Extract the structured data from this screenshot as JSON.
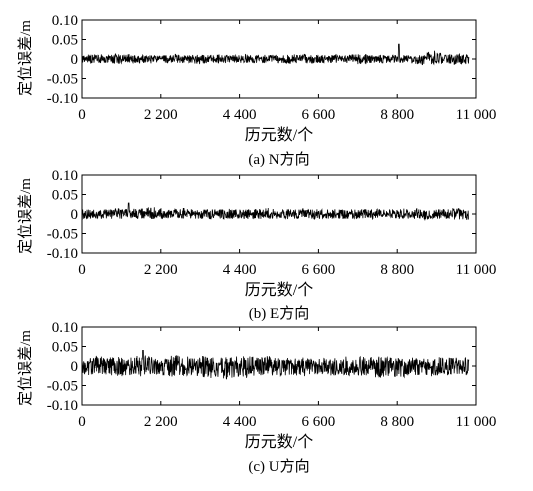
{
  "figure": {
    "x_ticks": [
      "0",
      "2 200",
      "4 400",
      "6 600",
      "8 800",
      "11 000"
    ],
    "y_ticks": [
      "0.10",
      "0.05",
      "0",
      "-0.05",
      "-0.10"
    ]
  },
  "chart_data": [
    {
      "type": "line",
      "panel_id": "N",
      "caption": "(a) N方向",
      "xlabel": "历元数/个",
      "ylabel": "定位误差/m",
      "xlim": [
        0,
        11000
      ],
      "ylim": [
        -0.1,
        0.1
      ],
      "x_ticks": [
        0,
        2200,
        4400,
        6600,
        8800,
        11000
      ],
      "y_ticks": [
        0.1,
        0.05,
        0,
        -0.05,
        -0.1
      ],
      "series": [
        {
          "x_start": 0,
          "x_end": 10800,
          "center": 0.0,
          "envelope_upper": [
            0.01,
            0.012,
            0.014,
            0.012,
            0.01,
            0.01,
            0.012,
            0.01,
            0.012,
            0.01,
            0.01,
            0.01,
            0.012,
            0.01,
            0.008,
            0.01,
            0.01,
            0.012,
            0.01,
            0.01,
            0.01,
            0.012,
            0.01,
            0.01,
            0.01,
            0.012,
            0.01,
            0.008,
            0.01,
            0.01,
            0.012,
            0.01,
            0.01,
            0.01,
            0.01,
            0.01,
            0.01,
            0.01,
            0.012,
            0.012,
            0.01,
            0.012,
            0.01,
            0.01,
            0.01,
            0.01,
            0.01,
            0.01,
            0.01,
            0.012,
            0.012,
            0.014,
            0.012,
            0.01,
            0.01,
            0.01,
            0.01,
            0.01,
            0.01,
            0.01,
            0.01,
            0.012,
            0.012,
            0.014,
            0.018,
            0.022,
            0.016,
            0.012,
            0.012,
            0.014,
            0.014,
            0.012
          ],
          "envelope_lower": [
            -0.01,
            -0.012,
            -0.012,
            -0.01,
            -0.01,
            -0.01,
            -0.012,
            -0.01,
            -0.01,
            -0.01,
            -0.01,
            -0.01,
            -0.012,
            -0.01,
            -0.008,
            -0.01,
            -0.01,
            -0.01,
            -0.01,
            -0.01,
            -0.01,
            -0.012,
            -0.01,
            -0.01,
            -0.01,
            -0.01,
            -0.01,
            -0.008,
            -0.01,
            -0.01,
            -0.01,
            -0.01,
            -0.01,
            -0.01,
            -0.01,
            -0.01,
            -0.01,
            -0.01,
            -0.012,
            -0.01,
            -0.01,
            -0.01,
            -0.01,
            -0.01,
            -0.01,
            -0.01,
            -0.01,
            -0.01,
            -0.01,
            -0.012,
            -0.012,
            -0.012,
            -0.012,
            -0.01,
            -0.01,
            -0.01,
            -0.01,
            -0.01,
            -0.01,
            -0.01,
            -0.01,
            -0.012,
            -0.012,
            -0.014,
            -0.014,
            -0.014,
            -0.012,
            -0.012,
            -0.012,
            -0.014,
            -0.014,
            -0.012
          ],
          "peak": {
            "x": 8850,
            "y": 0.038
          }
        }
      ]
    },
    {
      "type": "line",
      "panel_id": "E",
      "caption": "(b) E方向",
      "xlabel": "历元数/个",
      "ylabel": "定位误差/m",
      "xlim": [
        0,
        11000
      ],
      "ylim": [
        -0.1,
        0.1
      ],
      "x_ticks": [
        0,
        2200,
        4400,
        6600,
        8800,
        11000
      ],
      "y_ticks": [
        0.1,
        0.05,
        0,
        -0.05,
        -0.1
      ],
      "series": [
        {
          "x_start": 0,
          "x_end": 10800,
          "center": 0.0,
          "envelope_upper": [
            0.012,
            0.012,
            0.014,
            0.012,
            0.012,
            0.012,
            0.014,
            0.012,
            0.012,
            0.014,
            0.012,
            0.014,
            0.016,
            0.018,
            0.014,
            0.012,
            0.012,
            0.012,
            0.014,
            0.012,
            0.012,
            0.012,
            0.012,
            0.012,
            0.012,
            0.014,
            0.012,
            0.012,
            0.012,
            0.012,
            0.012,
            0.012,
            0.012,
            0.012,
            0.014,
            0.012,
            0.012,
            0.012,
            0.012,
            0.012,
            0.012,
            0.014,
            0.012,
            0.012,
            0.012,
            0.012,
            0.012,
            0.012,
            0.012,
            0.014,
            0.012,
            0.012,
            0.012,
            0.012,
            0.012,
            0.012,
            0.012,
            0.012,
            0.012,
            0.014,
            0.012,
            0.012,
            0.014,
            0.014,
            0.012,
            0.012,
            0.012,
            0.012,
            0.012,
            0.014,
            0.014,
            0.012
          ],
          "envelope_lower": [
            -0.012,
            -0.012,
            -0.012,
            -0.012,
            -0.012,
            -0.012,
            -0.012,
            -0.012,
            -0.012,
            -0.012,
            -0.012,
            -0.012,
            -0.012,
            -0.012,
            -0.012,
            -0.012,
            -0.012,
            -0.012,
            -0.012,
            -0.012,
            -0.012,
            -0.012,
            -0.012,
            -0.012,
            -0.012,
            -0.012,
            -0.012,
            -0.012,
            -0.012,
            -0.012,
            -0.012,
            -0.012,
            -0.012,
            -0.012,
            -0.012,
            -0.012,
            -0.012,
            -0.012,
            -0.012,
            -0.012,
            -0.012,
            -0.012,
            -0.012,
            -0.012,
            -0.012,
            -0.012,
            -0.012,
            -0.012,
            -0.012,
            -0.012,
            -0.012,
            -0.012,
            -0.012,
            -0.012,
            -0.012,
            -0.012,
            -0.012,
            -0.012,
            -0.012,
            -0.012,
            -0.012,
            -0.012,
            -0.014,
            -0.016,
            -0.012,
            -0.012,
            -0.012,
            -0.012,
            -0.012,
            -0.014,
            -0.016,
            -0.014
          ],
          "peak": {
            "x": 1300,
            "y": 0.028
          }
        }
      ]
    },
    {
      "type": "line",
      "panel_id": "U",
      "caption": "(c) U方向",
      "xlabel": "历元数/个",
      "ylabel": "定位误差/m",
      "xlim": [
        0,
        11000
      ],
      "ylim": [
        -0.1,
        0.1
      ],
      "x_ticks": [
        0,
        2200,
        4400,
        6600,
        8800,
        11000
      ],
      "y_ticks": [
        0.1,
        0.05,
        0,
        -0.05,
        -0.1
      ],
      "series": [
        {
          "x_start": 0,
          "x_end": 10800,
          "center": 0.0,
          "envelope_upper": [
            0.018,
            0.02,
            0.024,
            0.022,
            0.02,
            0.022,
            0.024,
            0.022,
            0.02,
            0.022,
            0.024,
            0.028,
            0.026,
            0.024,
            0.022,
            0.022,
            0.024,
            0.026,
            0.024,
            0.022,
            0.02,
            0.022,
            0.024,
            0.022,
            0.022,
            0.024,
            0.024,
            0.022,
            0.026,
            0.028,
            0.026,
            0.024,
            0.022,
            0.022,
            0.024,
            0.022,
            0.02,
            0.02,
            0.022,
            0.02,
            0.02,
            0.022,
            0.02,
            0.02,
            0.02,
            0.022,
            0.022,
            0.02,
            0.02,
            0.022,
            0.024,
            0.024,
            0.022,
            0.022,
            0.02,
            0.022,
            0.024,
            0.022,
            0.02,
            0.02,
            0.022,
            0.024,
            0.022,
            0.02,
            0.022,
            0.02,
            0.022,
            0.022,
            0.022,
            0.022,
            0.022,
            0.02
          ],
          "envelope_lower": [
            -0.02,
            -0.022,
            -0.024,
            -0.024,
            -0.022,
            -0.024,
            -0.026,
            -0.024,
            -0.022,
            -0.022,
            -0.024,
            -0.024,
            -0.024,
            -0.022,
            -0.022,
            -0.024,
            -0.026,
            -0.026,
            -0.024,
            -0.022,
            -0.024,
            -0.026,
            -0.026,
            -0.028,
            -0.03,
            -0.032,
            -0.034,
            -0.032,
            -0.03,
            -0.028,
            -0.028,
            -0.026,
            -0.024,
            -0.024,
            -0.026,
            -0.026,
            -0.024,
            -0.024,
            -0.024,
            -0.022,
            -0.022,
            -0.024,
            -0.022,
            -0.022,
            -0.022,
            -0.022,
            -0.024,
            -0.022,
            -0.022,
            -0.024,
            -0.024,
            -0.024,
            -0.026,
            -0.028,
            -0.03,
            -0.028,
            -0.026,
            -0.026,
            -0.028,
            -0.028,
            -0.026,
            -0.024,
            -0.024,
            -0.024,
            -0.024,
            -0.024,
            -0.022,
            -0.022,
            -0.022,
            -0.024,
            -0.022,
            -0.022
          ],
          "peak": {
            "x": 1700,
            "y": 0.04
          }
        }
      ]
    }
  ]
}
